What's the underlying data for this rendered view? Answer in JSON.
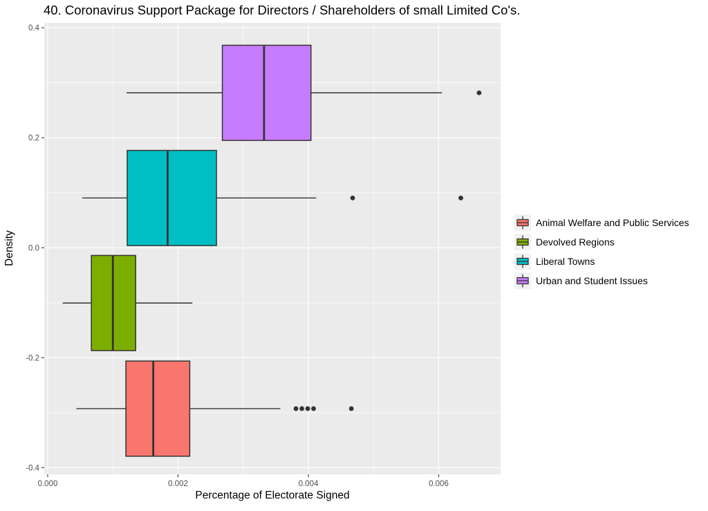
{
  "title": "40. Coronavirus Support Package for Directors / Shareholders of small Limited Co's.",
  "colors": {
    "background": "#FFFFFF",
    "panel_bg": "#EBEBEB",
    "grid": "#FFFFFF",
    "box_stroke": "#333333",
    "outlier": "#333333",
    "tick_label": "#4D4D4D",
    "legend_key_bg": "#F2F2F2"
  },
  "chart_data": {
    "type": "boxplot",
    "orientation": "horizontal",
    "title": "40. Coronavirus Support Package for Directors / Shareholders of small Limited Co's.",
    "xlabel": "Percentage of Electorate Signed",
    "ylabel": "Density",
    "xlim": [
      -5.3e-05,
      0.00695
    ],
    "ylim": [
      -0.412,
      0.409
    ],
    "x_ticks": [
      {
        "value": 0.0,
        "label": "0.000"
      },
      {
        "value": 0.002,
        "label": "0.002"
      },
      {
        "value": 0.004,
        "label": "0.004"
      },
      {
        "value": 0.006,
        "label": "0.006"
      }
    ],
    "x_minor": [
      0.001,
      0.003,
      0.005
    ],
    "y_ticks": [
      {
        "value": 0.4,
        "label": "0.4"
      },
      {
        "value": 0.2,
        "label": "0.2"
      },
      {
        "value": 0.0,
        "label": "0.0"
      },
      {
        "value": -0.2,
        "label": "-0.2"
      },
      {
        "value": -0.4,
        "label": "-0.4"
      }
    ],
    "y_minor": [
      0.3,
      0.1,
      -0.1,
      -0.3
    ],
    "grid": true,
    "legend_position": "right",
    "box_height": 0.173,
    "series": [
      {
        "name": "Animal Welfare and Public Services",
        "color": "#F8766D",
        "y_center": -0.2925,
        "whisker_min": 0.00044,
        "q1": 0.0012,
        "median": 0.00162,
        "q3": 0.00218,
        "whisker_max": 0.00357,
        "outliers": [
          0.00381,
          0.0039,
          0.00399,
          0.00408,
          0.00466
        ]
      },
      {
        "name": "Devolved Regions",
        "color": "#7CAE00",
        "y_center": -0.1005,
        "whisker_min": 0.00023,
        "q1": 0.00067,
        "median": 0.001,
        "q3": 0.00135,
        "whisker_max": 0.00222,
        "outliers": []
      },
      {
        "name": "Liberal Towns",
        "color": "#00BFC4",
        "y_center": 0.0905,
        "whisker_min": 0.00053,
        "q1": 0.00122,
        "median": 0.00184,
        "q3": 0.00259,
        "whisker_max": 0.00412,
        "outliers": [
          0.00468,
          0.00634
        ]
      },
      {
        "name": "Urban and Student Issues",
        "color": "#C77CFF",
        "y_center": 0.2817,
        "whisker_min": 0.00121,
        "q1": 0.00268,
        "median": 0.00332,
        "q3": 0.00404,
        "whisker_max": 0.00605,
        "outliers": [
          0.00662
        ]
      }
    ]
  }
}
